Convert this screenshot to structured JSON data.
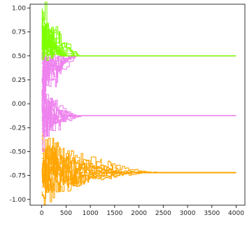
{
  "chart_data": {
    "type": "line",
    "title": "",
    "xlabel": "",
    "ylabel": "",
    "xlim": [
      -240,
      4180
    ],
    "ylim": [
      -1.06,
      1.04
    ],
    "grid": false,
    "legend": "none",
    "x_ticks": [
      0,
      500,
      1000,
      1500,
      2000,
      2500,
      3000,
      3500,
      4000
    ],
    "x_tick_labels": [
      "0",
      "500",
      "1000",
      "1500",
      "2000",
      "2500",
      "3000",
      "3500",
      "4000"
    ],
    "y_ticks": [
      1.0,
      0.75,
      0.5,
      0.25,
      0.0,
      -0.25,
      -0.5,
      -0.75,
      -1.0
    ],
    "y_tick_labels": [
      "1.00",
      "0.75",
      "0.50",
      "0.25",
      "0.00",
      "-0.25",
      "-0.50",
      "-0.75",
      "-1.00"
    ],
    "colors": {
      "green": "#7fff00",
      "violet": "#ee82ee",
      "orange": "#ffa500"
    },
    "series_groups": [
      {
        "color": "green",
        "converges_to": 0.5,
        "starts": [
          0.99,
          0.97,
          0.95,
          0.92,
          0.9,
          0.88,
          0.85,
          0.82,
          0.8,
          0.78,
          0.74,
          0.7,
          0.66,
          0.62,
          0.58
        ],
        "settle_x": 650,
        "x_end": 4000
      },
      {
        "color": "violet",
        "converges_to": 0.5,
        "starts": [
          0.02,
          0.06,
          0.1,
          0.14,
          0.18,
          0.22,
          0.26,
          0.3,
          0.34,
          0.38,
          0.42
        ],
        "settle_x": 600,
        "x_end": 4000
      },
      {
        "color": "violet",
        "converges_to": -0.125,
        "starts": [
          0.15,
          0.1,
          0.06,
          0.02,
          -0.02,
          -0.06,
          -0.1,
          -0.14,
          -0.18,
          -0.22,
          -0.26,
          -0.3,
          -0.34,
          -0.38
        ],
        "settle_x": 700,
        "x_end": 4000
      },
      {
        "color": "orange",
        "converges_to": -0.72,
        "starts": [
          -0.42,
          -0.47,
          -0.52,
          -0.57,
          -0.62,
          -0.67,
          -0.72,
          -0.77,
          -0.82,
          -0.87,
          -0.92,
          -0.95
        ],
        "settle_x": 2200,
        "x_end": 4000
      }
    ]
  }
}
